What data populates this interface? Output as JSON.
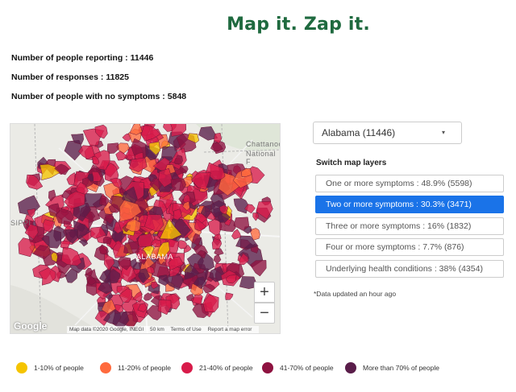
{
  "title": "Map it. Zap it.",
  "stats": [
    {
      "label": "Number of people reporting :",
      "value": "11446"
    },
    {
      "label": "Number of responses :",
      "value": "11825"
    },
    {
      "label": "Number of people with no symptoms :",
      "value": "5848"
    }
  ],
  "map": {
    "labels": {
      "chattanooga": "Chattanoo",
      "national_forest": "National F",
      "mississippi": "SIPPI",
      "alabama": "ALABAMA"
    },
    "google": "Google",
    "attribution": {
      "data": "Map data ©2020 Google, INEGI",
      "scale": "50 km",
      "terms": "Terms of Use",
      "report": "Report a map error"
    },
    "zoom_in": "+",
    "zoom_out": "−"
  },
  "state_select": {
    "value": "Alabama (11446)",
    "caret": "▾"
  },
  "layers": {
    "title": "Switch map layers",
    "items": [
      {
        "label": "One or more symptoms : 48.9% (5598)",
        "active": false
      },
      {
        "label": "Two or more symptoms : 30.3% (3471)",
        "active": true
      },
      {
        "label": "Three or more symptoms : 16% (1832)",
        "active": false
      },
      {
        "label": "Four or more symptoms : 7.7% (876)",
        "active": false
      },
      {
        "label": "Underlying health conditions : 38% (4354)",
        "active": false
      }
    ]
  },
  "note": "*Data updated an hour ago",
  "legend": [
    {
      "label": "1-10% of people",
      "color": "#f5c400"
    },
    {
      "label": "11-20% of people",
      "color": "#ff6a3d"
    },
    {
      "label": "21-40% of people",
      "color": "#d81b4a"
    },
    {
      "label": "41-70% of people",
      "color": "#8e1240"
    },
    {
      "label": "More than 70% of people",
      "color": "#5a1d4a"
    }
  ]
}
